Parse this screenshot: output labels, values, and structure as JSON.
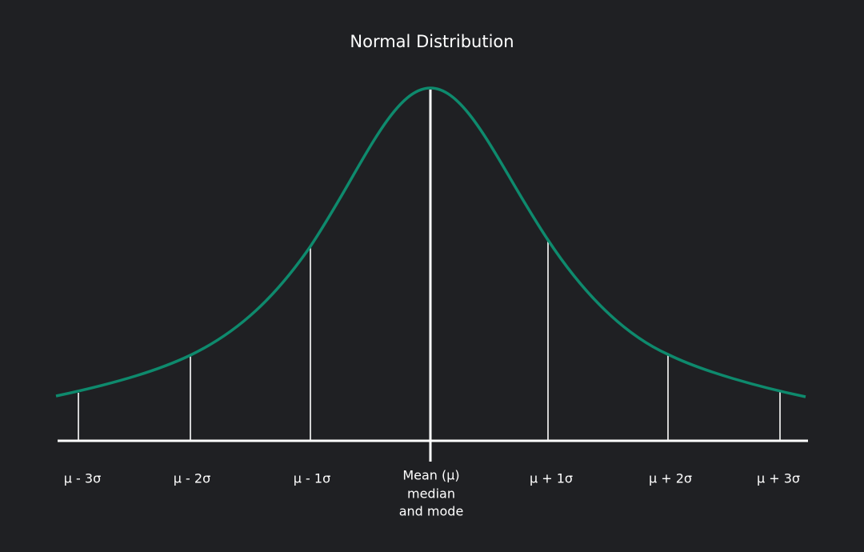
{
  "title": "Normal Distribution",
  "x_labels": [
    "μ - 3σ",
    "μ - 2σ",
    "μ - 1σ",
    "μ + 1σ",
    "μ + 2σ",
    "μ + 3σ"
  ],
  "mean_label": [
    "Mean (μ)",
    "median",
    "and mode"
  ]
}
